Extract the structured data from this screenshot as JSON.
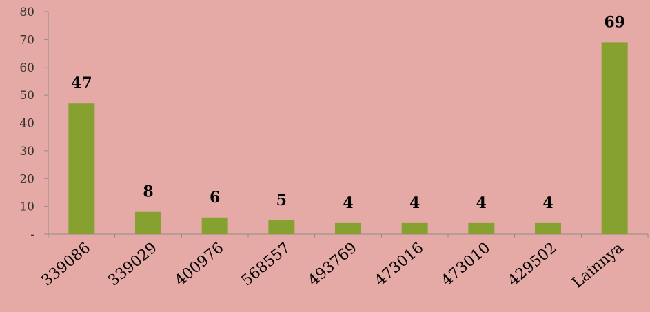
{
  "chart_data": {
    "type": "bar",
    "title": "",
    "xlabel": "",
    "ylabel": "",
    "categories": [
      "339086",
      "339029",
      "400976",
      "568557",
      "493769",
      "473016",
      "473010",
      "429502",
      "Lainnya"
    ],
    "values": [
      47,
      8,
      6,
      5,
      4,
      4,
      4,
      4,
      69
    ],
    "data_labels": [
      "47",
      "8",
      "6",
      "5",
      "4",
      "4",
      "4",
      "4",
      "69"
    ],
    "ylim": [
      0,
      80
    ],
    "yticks": [
      0,
      10,
      20,
      30,
      40,
      50,
      60,
      70,
      80
    ],
    "ytick_labels": [
      "-",
      "10",
      "20",
      "30",
      "40",
      "50",
      "60",
      "70",
      "80"
    ],
    "grid": false,
    "legend": "none",
    "colors": {
      "bar": "#86a12f",
      "background": "#e6aaa6",
      "axis": "#8c8c8c"
    }
  }
}
